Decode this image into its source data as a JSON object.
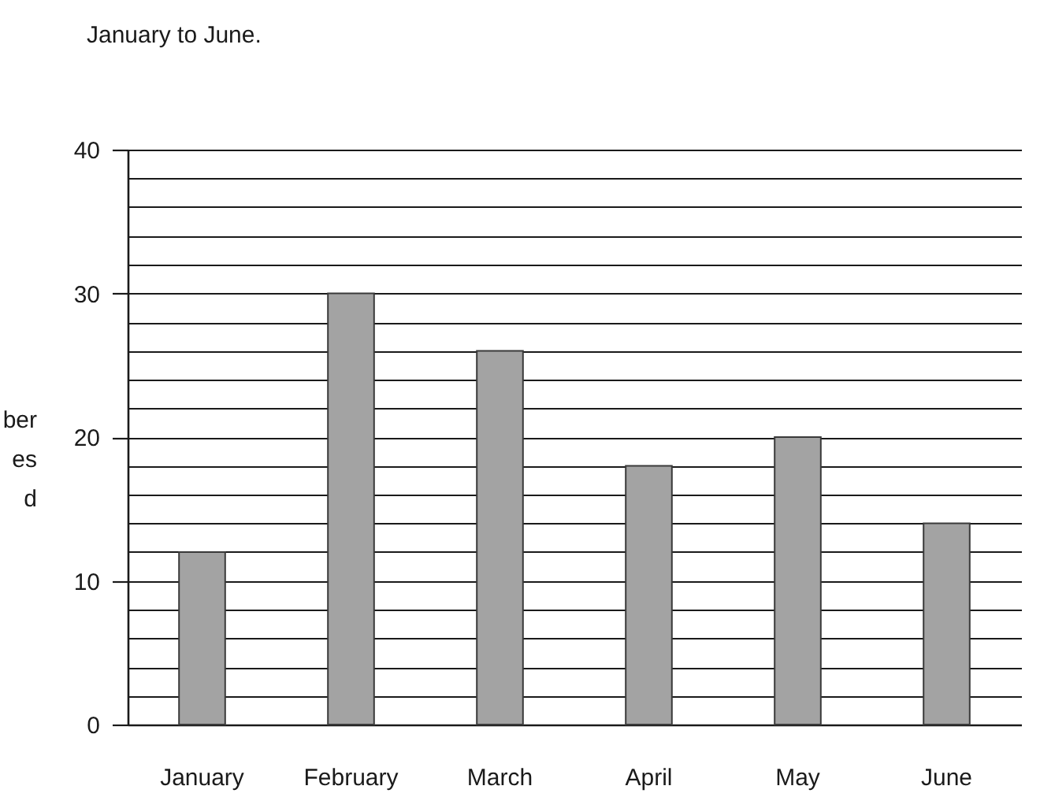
{
  "chart_data": {
    "type": "bar",
    "title": "January to June.",
    "ylabel": "ber\n\nes\nd",
    "categories": [
      "January",
      "February",
      "March",
      "April",
      "May",
      "June"
    ],
    "values": [
      12,
      30,
      26,
      18,
      20,
      14
    ],
    "color": "#a3a3a3",
    "ylim": [
      0,
      40
    ],
    "yticks": [
      0,
      {
        "value": 2,
        "label": null
      },
      {
        "value": 4,
        "label": null
      },
      {
        "value": 6,
        "label": null
      },
      {
        "value": 8,
        "label": null
      },
      10,
      {
        "value": 12,
        "label": null
      },
      {
        "value": 14,
        "label": null
      },
      {
        "value": 16,
        "label": null
      },
      {
        "value": 18,
        "label": null
      },
      20,
      {
        "value": 22,
        "label": null
      },
      {
        "value": 24,
        "label": null
      },
      {
        "value": 26,
        "label": null
      },
      {
        "value": 28,
        "label": null
      },
      30,
      {
        "value": 32,
        "label": null
      },
      {
        "value": 34,
        "label": null
      },
      {
        "value": 36,
        "label": null
      },
      {
        "value": 38,
        "label": null
      },
      40
    ],
    "grid": "y"
  }
}
